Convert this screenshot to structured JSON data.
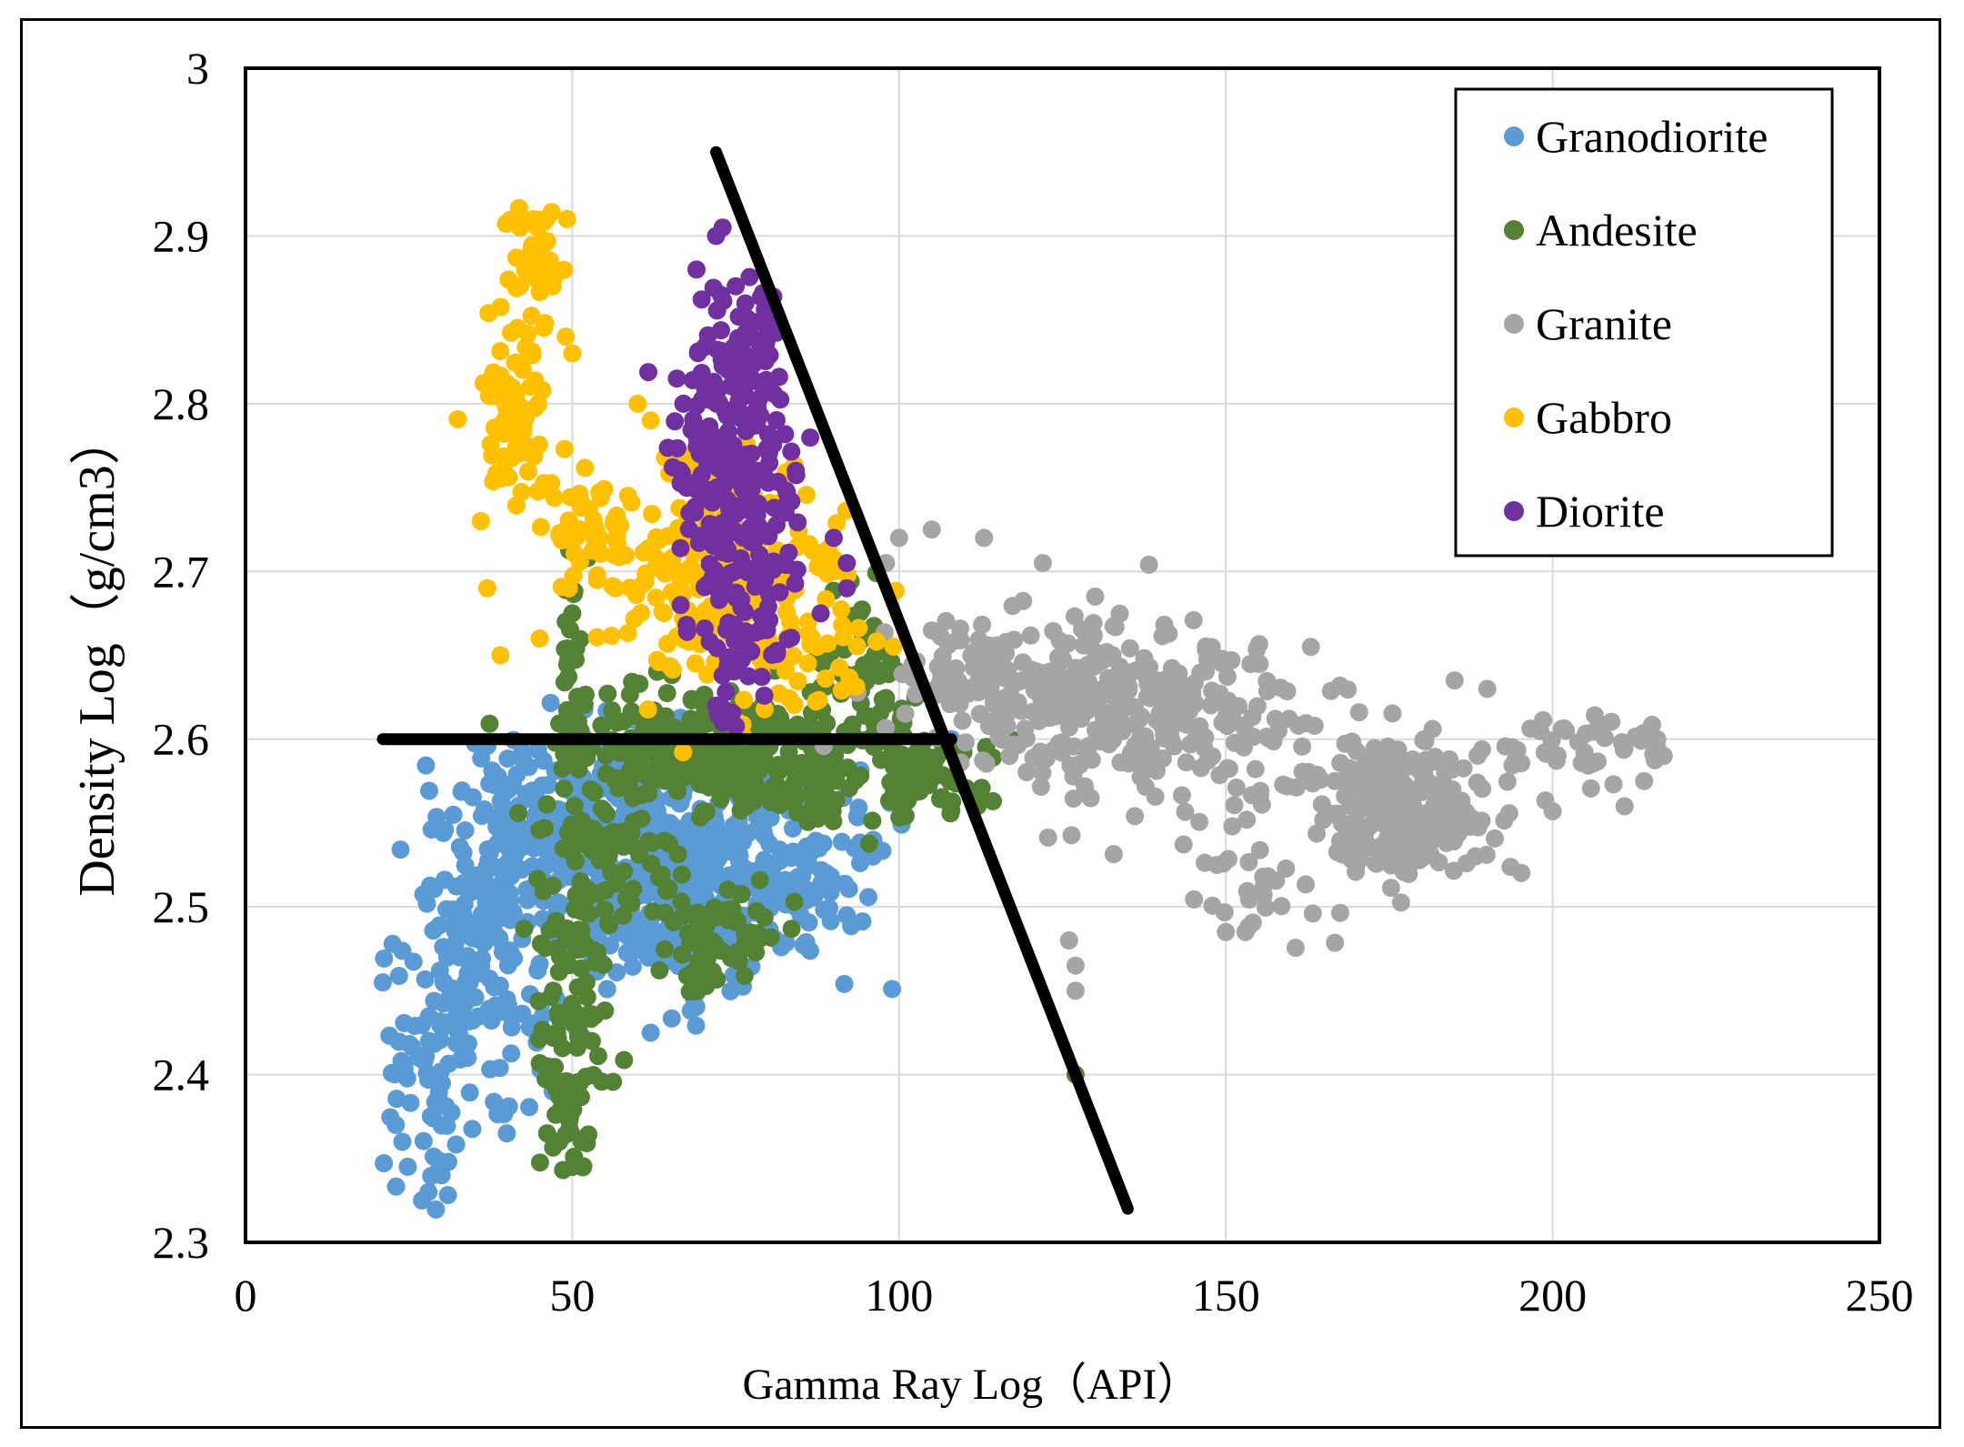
{
  "chart_data": {
    "type": "scatter",
    "title": "",
    "xlabel": "Gamma Ray Log（API）",
    "ylabel": "Density Log（g/cm3）",
    "xlim": [
      0,
      250
    ],
    "ylim": [
      2.3,
      3.0
    ],
    "x_ticks": [
      0,
      50,
      100,
      150,
      200,
      250
    ],
    "y_ticks": [
      2.3,
      2.4,
      2.5,
      2.6,
      2.7,
      2.8,
      2.9,
      3.0
    ],
    "x_tick_labels": [
      "0",
      "50",
      "100",
      "150",
      "200",
      "250"
    ],
    "y_tick_labels": [
      "2.3",
      "2.4",
      "2.5",
      "2.6",
      "2.7",
      "2.8",
      "2.9",
      "3"
    ],
    "grid": true,
    "legend_position": "top-right",
    "series": [
      {
        "name": "Granodiorite",
        "color": "#5b9bd5",
        "clusters": [
          {
            "cx": 65,
            "cy": 2.52,
            "sx": 9,
            "sy": 0.035,
            "n": 420
          },
          {
            "cx": 45,
            "cy": 2.55,
            "sx": 6,
            "sy": 0.03,
            "n": 160
          },
          {
            "cx": 36,
            "cy": 2.48,
            "sx": 6,
            "sy": 0.04,
            "n": 130
          },
          {
            "cx": 30,
            "cy": 2.4,
            "sx": 5,
            "sy": 0.04,
            "n": 80
          },
          {
            "cx": 85,
            "cy": 2.52,
            "sx": 6,
            "sy": 0.03,
            "n": 90
          }
        ],
        "points": [
          [
            21,
            2.455
          ],
          [
            23,
            2.37
          ],
          [
            24,
            2.36
          ],
          [
            27,
            2.325
          ],
          [
            28,
            2.33
          ],
          [
            30,
            2.34
          ],
          [
            52,
            2.6
          ],
          [
            62,
            2.425
          ],
          [
            92,
            2.495
          ],
          [
            96,
            2.53
          ],
          [
            108,
            2.6
          ],
          [
            40,
            2.445
          ],
          [
            47,
            2.39
          ]
        ]
      },
      {
        "name": "Andesite",
        "color": "#548235",
        "clusters": [
          {
            "cx": 75,
            "cy": 2.59,
            "sx": 12,
            "sy": 0.018,
            "n": 380
          },
          {
            "cx": 50,
            "cy": 2.47,
            "sx": 3,
            "sy": 0.05,
            "n": 90
          },
          {
            "cx": 50,
            "cy": 2.38,
            "sx": 1.8,
            "sy": 0.025,
            "n": 40
          },
          {
            "cx": 50,
            "cy": 2.64,
            "sx": 1.2,
            "sy": 0.03,
            "n": 30
          },
          {
            "cx": 73,
            "cy": 2.48,
            "sx": 6,
            "sy": 0.02,
            "n": 70
          },
          {
            "cx": 95,
            "cy": 2.63,
            "sx": 4,
            "sy": 0.025,
            "n": 60
          },
          {
            "cx": 105,
            "cy": 2.58,
            "sx": 5,
            "sy": 0.012,
            "n": 50
          },
          {
            "cx": 55,
            "cy": 2.53,
            "sx": 5,
            "sy": 0.02,
            "n": 60
          }
        ],
        "points": [
          [
            127,
            2.4
          ],
          [
            112,
            2.56
          ],
          [
            50,
            2.675
          ],
          [
            49,
            2.67
          ],
          [
            50,
            2.345
          ],
          [
            48,
            2.36
          ],
          [
            53,
            2.42
          ]
        ]
      },
      {
        "name": "Granite",
        "color": "#a5a5a5",
        "clusters": [
          {
            "cx": 177,
            "cy": 2.56,
            "sx": 7,
            "sy": 0.02,
            "n": 260
          },
          {
            "cx": 130,
            "cy": 2.62,
            "sx": 12,
            "sy": 0.025,
            "n": 260
          },
          {
            "cx": 150,
            "cy": 2.6,
            "sx": 10,
            "sy": 0.03,
            "n": 90
          },
          {
            "cx": 205,
            "cy": 2.595,
            "sx": 7,
            "sy": 0.008,
            "n": 45
          },
          {
            "cx": 155,
            "cy": 2.51,
            "sx": 7,
            "sy": 0.015,
            "n": 30
          },
          {
            "cx": 112,
            "cy": 2.64,
            "sx": 5,
            "sy": 0.015,
            "n": 50
          }
        ],
        "points": [
          [
            98,
            2.705
          ],
          [
            100,
            2.72
          ],
          [
            105,
            2.725
          ],
          [
            113,
            2.72
          ],
          [
            122,
            2.705
          ],
          [
            130,
            2.685
          ],
          [
            126,
            2.48
          ],
          [
            127,
            2.45
          ],
          [
            127,
            2.465
          ],
          [
            153,
            2.485
          ],
          [
            150,
            2.485
          ],
          [
            214,
            2.575
          ],
          [
            211,
            2.56
          ],
          [
            200,
            2.557
          ],
          [
            216,
            2.6
          ],
          [
            217,
            2.59
          ],
          [
            190,
            2.63
          ],
          [
            185,
            2.635
          ],
          [
            163,
            2.655
          ]
        ]
      },
      {
        "name": "Gabbro",
        "color": "#ffc000",
        "clusters": [
          {
            "cx": 72,
            "cy": 2.7,
            "sx": 8,
            "sy": 0.035,
            "n": 190
          },
          {
            "cx": 41,
            "cy": 2.79,
            "sx": 2.5,
            "sy": 0.025,
            "n": 70
          },
          {
            "cx": 44,
            "cy": 2.885,
            "sx": 2.5,
            "sy": 0.02,
            "n": 40
          },
          {
            "cx": 52,
            "cy": 2.73,
            "sx": 3,
            "sy": 0.02,
            "n": 40
          },
          {
            "cx": 88,
            "cy": 2.66,
            "sx": 5,
            "sy": 0.025,
            "n": 45
          }
        ],
        "points": [
          [
            36,
            2.73
          ],
          [
            37,
            2.69
          ],
          [
            39,
            2.65
          ],
          [
            45,
            2.66
          ],
          [
            49,
            2.84
          ],
          [
            50,
            2.83
          ],
          [
            47,
            2.87
          ],
          [
            60,
            2.8
          ],
          [
            62,
            2.79
          ],
          [
            44,
            2.91
          ],
          [
            46,
            2.91
          ],
          [
            42,
            2.905
          ]
        ]
      },
      {
        "name": "Diorite",
        "color": "#7030a0",
        "clusters": [
          {
            "cx": 75,
            "cy": 2.75,
            "sx": 5,
            "sy": 0.045,
            "n": 230
          },
          {
            "cx": 78,
            "cy": 2.83,
            "sx": 3,
            "sy": 0.02,
            "n": 40
          },
          {
            "cx": 75,
            "cy": 2.65,
            "sx": 3,
            "sy": 0.02,
            "n": 30
          }
        ],
        "points": [
          [
            72,
            2.9
          ],
          [
            73,
            2.905
          ],
          [
            69,
            2.88
          ],
          [
            75,
            2.87
          ],
          [
            66,
            2.815
          ],
          [
            67,
            2.8
          ],
          [
            90,
            2.72
          ],
          [
            92,
            2.705
          ],
          [
            92,
            2.69
          ],
          [
            88,
            2.675
          ],
          [
            73,
            2.61
          ],
          [
            72,
            2.62
          ]
        ]
      }
    ],
    "reference_lines": [
      {
        "name": "horizontal divider",
        "color": "#000000",
        "x": [
          21,
          108
        ],
        "y": [
          2.6,
          2.6
        ]
      },
      {
        "name": "diagonal divider",
        "color": "#000000",
        "x": [
          72,
          135
        ],
        "y": [
          2.95,
          2.32
        ]
      }
    ]
  }
}
